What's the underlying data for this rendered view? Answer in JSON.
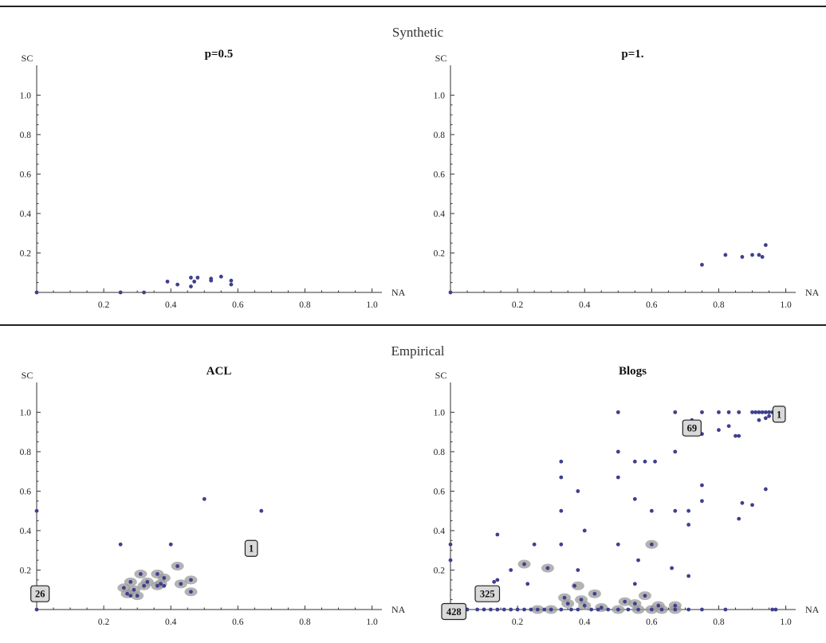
{
  "sections": [
    {
      "title": "Synthetic",
      "panels": [
        0,
        1
      ]
    },
    {
      "title": "Empirical",
      "panels": [
        2,
        3
      ]
    }
  ],
  "chart_data": [
    {
      "type": "scatter",
      "title": "p=0.5",
      "xlabel": "NA",
      "ylabel": "SC",
      "xlim": [
        0,
        1.02
      ],
      "ylim": [
        0,
        1.05
      ],
      "xticks": [
        "0.2",
        "0.4",
        "0.6",
        "0.8",
        "1.0"
      ],
      "yticks": [
        "0.2",
        "0.4",
        "0.6",
        "0.8",
        "1.0"
      ],
      "points": [
        [
          0.0,
          0.0
        ],
        [
          0.25,
          0.0
        ],
        [
          0.32,
          0.0
        ],
        [
          0.39,
          0.055
        ],
        [
          0.42,
          0.04
        ],
        [
          0.46,
          0.03
        ],
        [
          0.46,
          0.075
        ],
        [
          0.47,
          0.055
        ],
        [
          0.48,
          0.075
        ],
        [
          0.52,
          0.06
        ],
        [
          0.52,
          0.07
        ],
        [
          0.55,
          0.08
        ],
        [
          0.58,
          0.04
        ],
        [
          0.58,
          0.06
        ]
      ],
      "halos": [],
      "annotations": []
    },
    {
      "type": "scatter",
      "title": "p=1.",
      "xlabel": "NA",
      "ylabel": "SC",
      "xlim": [
        0,
        1.02
      ],
      "ylim": [
        0,
        1.05
      ],
      "xticks": [
        "0.2",
        "0.4",
        "0.6",
        "0.8",
        "1.0"
      ],
      "yticks": [
        "0.2",
        "0.4",
        "0.6",
        "0.8",
        "1.0"
      ],
      "points": [
        [
          0.0,
          0.0
        ],
        [
          0.75,
          0.14
        ],
        [
          0.82,
          0.19
        ],
        [
          0.87,
          0.18
        ],
        [
          0.9,
          0.19
        ],
        [
          0.92,
          0.19
        ],
        [
          0.93,
          0.18
        ],
        [
          0.94,
          0.24
        ]
      ],
      "halos": [],
      "annotations": []
    },
    {
      "type": "scatter",
      "title": "ACL",
      "xlabel": "NA",
      "ylabel": "SC",
      "xlim": [
        0,
        1.02
      ],
      "ylim": [
        0,
        1.05
      ],
      "xticks": [
        "0.2",
        "0.4",
        "0.6",
        "0.8",
        "1.0"
      ],
      "yticks": [
        "0.2",
        "0.4",
        "0.6",
        "0.8",
        "1.0"
      ],
      "points": [
        [
          0.0,
          0.5
        ],
        [
          0.0,
          0.0
        ],
        [
          0.25,
          0.33
        ],
        [
          0.4,
          0.33
        ],
        [
          0.5,
          0.56
        ],
        [
          0.67,
          0.5
        ],
        [
          0.26,
          0.11
        ],
        [
          0.27,
          0.08
        ],
        [
          0.28,
          0.14
        ],
        [
          0.28,
          0.07
        ],
        [
          0.29,
          0.1
        ],
        [
          0.3,
          0.07
        ],
        [
          0.31,
          0.18
        ],
        [
          0.33,
          0.14
        ],
        [
          0.32,
          0.12
        ],
        [
          0.36,
          0.12
        ],
        [
          0.36,
          0.18
        ],
        [
          0.37,
          0.13
        ],
        [
          0.38,
          0.16
        ],
        [
          0.38,
          0.12
        ],
        [
          0.42,
          0.22
        ],
        [
          0.43,
          0.13
        ],
        [
          0.46,
          0.15
        ],
        [
          0.46,
          0.09
        ]
      ],
      "halos": [
        [
          0.26,
          0.11
        ],
        [
          0.27,
          0.08
        ],
        [
          0.28,
          0.14
        ],
        [
          0.29,
          0.1
        ],
        [
          0.3,
          0.07
        ],
        [
          0.31,
          0.18
        ],
        [
          0.33,
          0.14
        ],
        [
          0.32,
          0.12
        ],
        [
          0.36,
          0.12
        ],
        [
          0.36,
          0.18
        ],
        [
          0.37,
          0.13
        ],
        [
          0.38,
          0.16
        ],
        [
          0.42,
          0.22
        ],
        [
          0.43,
          0.13
        ],
        [
          0.46,
          0.15
        ],
        [
          0.46,
          0.09
        ]
      ],
      "annotations": [
        {
          "label": "1",
          "x": 0.64,
          "y": 0.31
        },
        {
          "label": "26",
          "x": 0.01,
          "y": 0.08
        }
      ]
    },
    {
      "type": "scatter",
      "title": "Blogs",
      "xlabel": "NA",
      "ylabel": "SC",
      "xlim": [
        0,
        1.02
      ],
      "ylim": [
        0,
        1.05
      ],
      "xticks": [
        "0.2",
        "0.4",
        "0.6",
        "0.8",
        "1.0"
      ],
      "yticks": [
        "0.2",
        "0.4",
        "0.6",
        "0.8",
        "1.0"
      ],
      "points": [
        [
          0.5,
          1.0
        ],
        [
          0.67,
          1.0
        ],
        [
          0.75,
          1.0
        ],
        [
          0.8,
          1.0
        ],
        [
          0.83,
          1.0
        ],
        [
          0.86,
          1.0
        ],
        [
          0.9,
          1.0
        ],
        [
          0.91,
          1.0
        ],
        [
          0.92,
          1.0
        ],
        [
          0.93,
          1.0
        ],
        [
          0.94,
          1.0
        ],
        [
          0.95,
          1.0
        ],
        [
          0.96,
          1.0
        ],
        [
          0.92,
          0.96
        ],
        [
          0.94,
          0.97
        ],
        [
          0.95,
          0.98
        ],
        [
          0.74,
          0.9
        ],
        [
          0.75,
          0.89
        ],
        [
          0.8,
          0.91
        ],
        [
          0.83,
          0.93
        ],
        [
          0.85,
          0.88
        ],
        [
          0.86,
          0.88
        ],
        [
          0.72,
          0.96
        ],
        [
          0.5,
          0.8
        ],
        [
          0.55,
          0.75
        ],
        [
          0.58,
          0.75
        ],
        [
          0.61,
          0.75
        ],
        [
          0.67,
          0.8
        ],
        [
          0.33,
          0.75
        ],
        [
          0.33,
          0.67
        ],
        [
          0.5,
          0.67
        ],
        [
          0.38,
          0.6
        ],
        [
          0.75,
          0.63
        ],
        [
          0.94,
          0.61
        ],
        [
          0.55,
          0.56
        ],
        [
          0.75,
          0.55
        ],
        [
          0.87,
          0.54
        ],
        [
          0.9,
          0.53
        ],
        [
          0.33,
          0.5
        ],
        [
          0.6,
          0.5
        ],
        [
          0.67,
          0.5
        ],
        [
          0.71,
          0.5
        ],
        [
          0.86,
          0.46
        ],
        [
          0.71,
          0.43
        ],
        [
          0.4,
          0.4
        ],
        [
          0.14,
          0.38
        ],
        [
          0.0,
          0.33
        ],
        [
          0.25,
          0.33
        ],
        [
          0.33,
          0.33
        ],
        [
          0.5,
          0.33
        ],
        [
          0.6,
          0.33
        ],
        [
          0.0,
          0.25
        ],
        [
          0.56,
          0.25
        ],
        [
          0.66,
          0.21
        ],
        [
          0.29,
          0.21
        ],
        [
          0.38,
          0.2
        ],
        [
          0.18,
          0.2
        ],
        [
          0.22,
          0.23
        ],
        [
          0.71,
          0.17
        ],
        [
          0.14,
          0.15
        ],
        [
          0.13,
          0.14
        ],
        [
          0.55,
          0.13
        ],
        [
          0.43,
          0.08
        ],
        [
          0.37,
          0.12
        ],
        [
          0.12,
          0.1
        ],
        [
          0.23,
          0.13
        ],
        [
          0.34,
          0.06
        ],
        [
          0.39,
          0.05
        ],
        [
          0.35,
          0.03
        ],
        [
          0.4,
          0.02
        ],
        [
          0.45,
          0.01
        ],
        [
          0.52,
          0.04
        ],
        [
          0.55,
          0.03
        ],
        [
          0.58,
          0.07
        ],
        [
          0.62,
          0.02
        ],
        [
          0.67,
          0.02
        ],
        [
          0.71,
          0.0
        ],
        [
          0.75,
          0.0
        ],
        [
          0.82,
          0.0
        ],
        [
          0.96,
          0.0
        ],
        [
          0.97,
          0.0
        ],
        [
          0.02,
          0.0
        ],
        [
          0.05,
          0.0
        ],
        [
          0.08,
          0.0
        ],
        [
          0.1,
          0.0
        ],
        [
          0.12,
          0.0
        ],
        [
          0.14,
          0.0
        ],
        [
          0.16,
          0.0
        ],
        [
          0.18,
          0.0
        ],
        [
          0.2,
          0.0
        ],
        [
          0.22,
          0.0
        ],
        [
          0.24,
          0.0
        ],
        [
          0.26,
          0.0
        ],
        [
          0.28,
          0.0
        ],
        [
          0.3,
          0.0
        ],
        [
          0.33,
          0.0
        ],
        [
          0.36,
          0.0
        ],
        [
          0.38,
          0.0
        ],
        [
          0.42,
          0.0
        ],
        [
          0.44,
          0.0
        ],
        [
          0.47,
          0.0
        ],
        [
          0.5,
          0.0
        ],
        [
          0.53,
          0.0
        ],
        [
          0.56,
          0.0
        ],
        [
          0.6,
          0.0
        ],
        [
          0.63,
          0.0
        ],
        [
          0.67,
          0.0
        ]
      ],
      "halos": [
        [
          0.6,
          0.33
        ],
        [
          0.22,
          0.23
        ],
        [
          0.29,
          0.21
        ],
        [
          0.38,
          0.12
        ],
        [
          0.43,
          0.08
        ],
        [
          0.34,
          0.06
        ],
        [
          0.39,
          0.05
        ],
        [
          0.35,
          0.03
        ],
        [
          0.4,
          0.02
        ],
        [
          0.45,
          0.01
        ],
        [
          0.52,
          0.04
        ],
        [
          0.55,
          0.03
        ],
        [
          0.58,
          0.07
        ],
        [
          0.62,
          0.02
        ],
        [
          0.67,
          0.02
        ],
        [
          0.5,
          0.0
        ],
        [
          0.56,
          0.0
        ],
        [
          0.6,
          0.0
        ],
        [
          0.63,
          0.0
        ],
        [
          0.67,
          0.0
        ],
        [
          0.3,
          0.0
        ],
        [
          0.26,
          0.0
        ]
      ],
      "annotations": [
        {
          "label": "1",
          "x": 0.98,
          "y": 0.99
        },
        {
          "label": "69",
          "x": 0.72,
          "y": 0.92
        },
        {
          "label": "325",
          "x": 0.11,
          "y": 0.08
        },
        {
          "label": "428",
          "x": 0.01,
          "y": -0.01
        }
      ]
    }
  ]
}
